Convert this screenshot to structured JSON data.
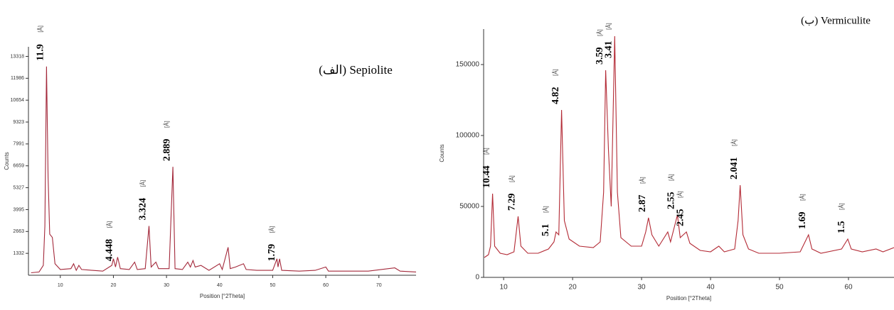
{
  "chart_data": [
    {
      "type": "line",
      "title": "(الف) Sepiolite",
      "ylabel": "Counts",
      "xlabel": "Position [°2Theta]",
      "xlim": [
        4,
        77
      ],
      "xticks": [
        10,
        20,
        30,
        40,
        50,
        60,
        70
      ],
      "ylim": [
        0,
        13900
      ],
      "yticks": [
        1332,
        2663,
        3995,
        5327,
        6659,
        7991,
        9323,
        10654,
        11986,
        13318
      ],
      "grid": false,
      "peak_unit": "[Å]",
      "series": [
        {
          "color": "#a3283a",
          "x": [
            4.5,
            6.0,
            6.8,
            7.1,
            7.4,
            7.7,
            8.0,
            8.5,
            9.0,
            10,
            12,
            12.5,
            13,
            13.5,
            14,
            16,
            18,
            19.7,
            20.0,
            20.4,
            20.8,
            21.3,
            23,
            24,
            24.5,
            26,
            26.7,
            27.1,
            28,
            28.5,
            30.5,
            31.2,
            31.6,
            33,
            34,
            34.5,
            35,
            35.4,
            36.5,
            38,
            40,
            40.5,
            41.6,
            42,
            43,
            44.5,
            45,
            47,
            50,
            50.8,
            51.0,
            51.3,
            51.7,
            55,
            58,
            60,
            60.5,
            65,
            68,
            73,
            74,
            77
          ],
          "values": [
            150,
            200,
            600,
            3000,
            12700,
            6000,
            2500,
            2300,
            700,
            350,
            400,
            700,
            300,
            600,
            350,
            300,
            250,
            600,
            1000,
            500,
            1100,
            400,
            350,
            800,
            350,
            400,
            3000,
            500,
            800,
            400,
            400,
            6600,
            400,
            350,
            800,
            500,
            900,
            500,
            600,
            300,
            700,
            350,
            1700,
            400,
            500,
            700,
            350,
            300,
            300,
            1000,
            500,
            1000,
            300,
            250,
            300,
            500,
            250,
            250,
            250,
            450,
            250,
            200
          ]
        }
      ],
      "annotations": [
        {
          "x": 7.4,
          "label": "11.9"
        },
        {
          "x": 20.4,
          "label": "4.448"
        },
        {
          "x": 26.7,
          "label": "3.324"
        },
        {
          "x": 31.2,
          "label": "2.889"
        },
        {
          "x": 51.0,
          "label": "1.79"
        }
      ]
    },
    {
      "type": "line",
      "title": "(ب) Vermiculite",
      "ylabel": "Counts",
      "xlabel": "Position [°2Theta]",
      "xlim": [
        7.1,
        66.6
      ],
      "xticks": [
        10,
        20,
        30,
        40,
        50,
        60
      ],
      "ylim": [
        0,
        175000
      ],
      "yticks": [
        0,
        50000,
        100000,
        150000
      ],
      "grid": false,
      "peak_unit": "[Å]",
      "series": [
        {
          "color": "#b32a35",
          "x": [
            7.2,
            7.8,
            8.1,
            8.4,
            8.7,
            9.5,
            10.5,
            11.5,
            12.1,
            12.5,
            13.5,
            15,
            16.5,
            17.3,
            17.6,
            18.0,
            18.4,
            18.8,
            19.5,
            21,
            23,
            24.0,
            24.5,
            24.8,
            25.2,
            25.6,
            26.1,
            26.5,
            27,
            28.5,
            30,
            30.6,
            31,
            31.5,
            32.5,
            33.8,
            34.2,
            35.2,
            35.6,
            36.5,
            37,
            38.5,
            40,
            41.2,
            42,
            43.5,
            44.0,
            44.3,
            44.7,
            45.5,
            47,
            50,
            53,
            54.2,
            54.7,
            56,
            59,
            59.9,
            60.4,
            62,
            64,
            65,
            66.6
          ],
          "values": [
            14000,
            16000,
            22000,
            59000,
            22000,
            17000,
            16000,
            18000,
            43000,
            22000,
            17000,
            17000,
            20000,
            25000,
            32000,
            30000,
            118000,
            40000,
            27000,
            22000,
            21000,
            25000,
            60000,
            146000,
            90000,
            50000,
            170000,
            60000,
            28000,
            22000,
            22000,
            32000,
            42000,
            30000,
            22000,
            32000,
            25000,
            44000,
            28000,
            32000,
            24000,
            19000,
            18000,
            22000,
            18000,
            20000,
            40000,
            65000,
            30000,
            20000,
            17000,
            17000,
            18000,
            30000,
            20000,
            17000,
            20000,
            27000,
            20000,
            18000,
            20000,
            18000,
            21000
          ]
        }
      ],
      "annotations": [
        {
          "x": 8.4,
          "label": "10.44"
        },
        {
          "x": 12.1,
          "label": "7.29"
        },
        {
          "x": 17.0,
          "label": "5.1"
        },
        {
          "x": 18.4,
          "label": "4.82"
        },
        {
          "x": 24.8,
          "label": "3.59"
        },
        {
          "x": 26.1,
          "label": "3.41"
        },
        {
          "x": 31,
          "label": "2.87"
        },
        {
          "x": 35.2,
          "label": "2.55"
        },
        {
          "x": 36.5,
          "label": "2.45"
        },
        {
          "x": 44.3,
          "label": "2.041"
        },
        {
          "x": 54.2,
          "label": "1.69"
        },
        {
          "x": 59.9,
          "label": "1.5"
        }
      ]
    }
  ]
}
